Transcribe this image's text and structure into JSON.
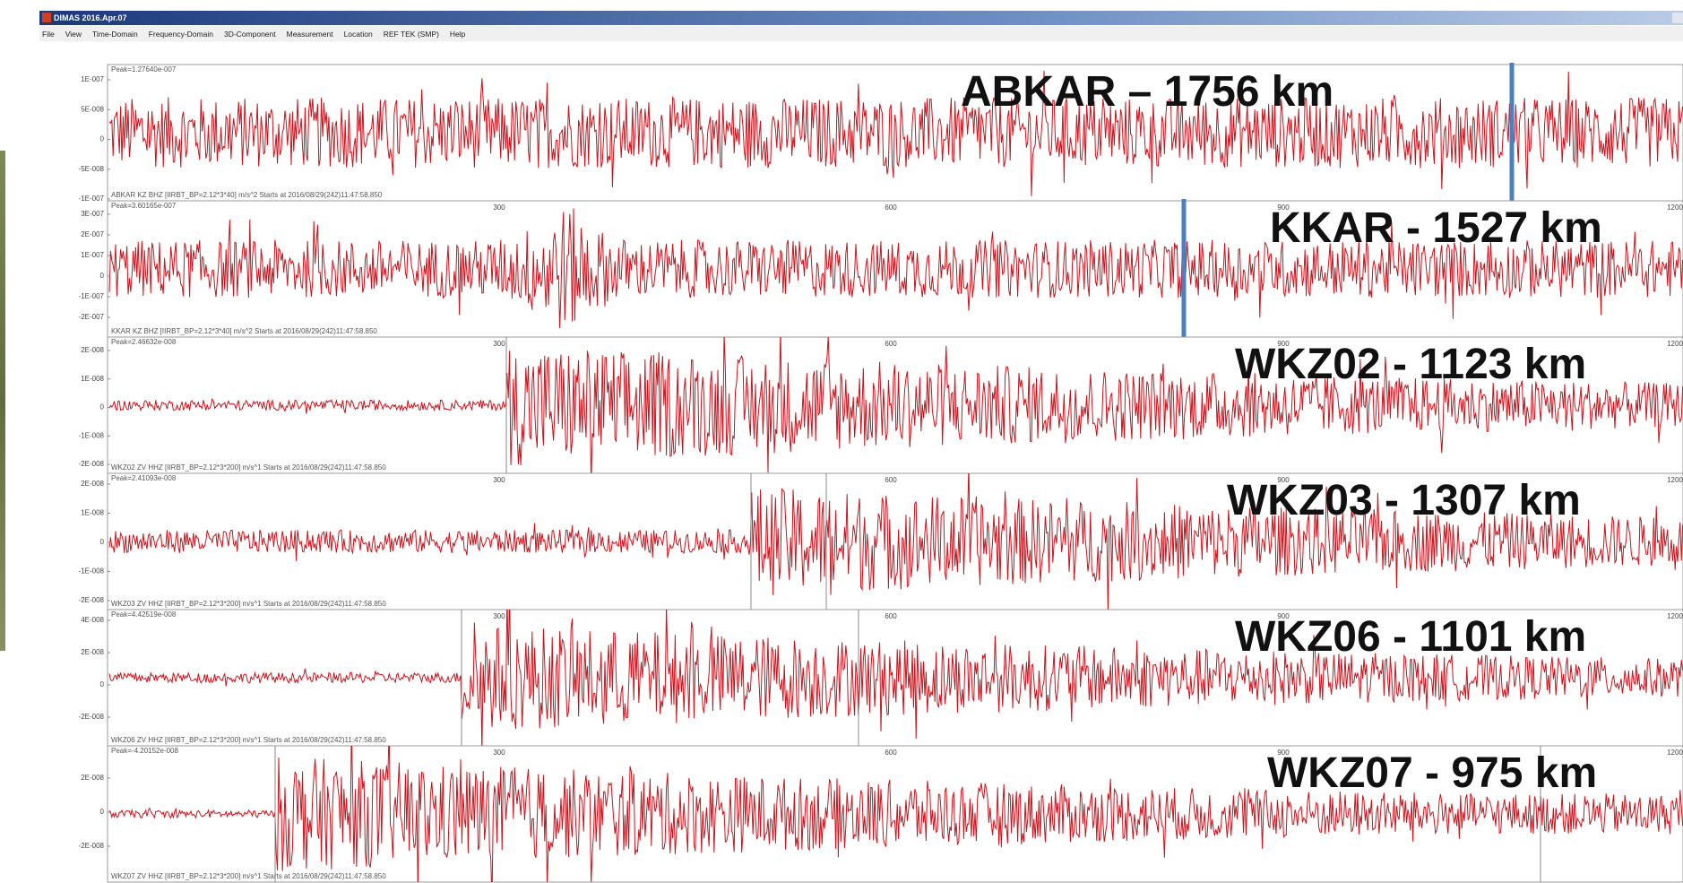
{
  "window": {
    "title": "DIMAS 2016.Apr.07",
    "menu": [
      "File",
      "View",
      "Time-Domain",
      "Frequency-Domain",
      "3D-Component",
      "Measurement",
      "Location",
      "REF TEK (SMP)",
      "Help"
    ]
  },
  "panels": [
    {
      "peak": "Peak=1.27640e-007",
      "yticks": [
        "1E-007",
        "5E-008",
        "0",
        "-5E-008",
        "-1E-007"
      ],
      "info": "ABKAR KZ BHZ [IIRBT_BP=2.12*3*40] m/s^2 Starts at 2016/08/29(242)11:47:58.850",
      "station": "ABKAR – 1756 km"
    },
    {
      "peak": "Peak=3.60165e-007",
      "yticks": [
        "3E-007",
        "2E-007",
        "1E-007",
        "0",
        "-1E-007",
        "-2E-007"
      ],
      "xticks": [
        "300",
        "600",
        "900",
        "1200"
      ],
      "info": "KKAR KZ BHZ [IIRBT_BP=2.12*3*40] m/s^2 Starts at 2016/08/29(242)11:47:58.850",
      "station": "KKAR - 1527 km"
    },
    {
      "peak": "Peak=2.46632e-008",
      "yticks": [
        "2E-008",
        "1E-008",
        "0",
        "-1E-008",
        "-2E-008"
      ],
      "xticks": [
        "300",
        "600",
        "900",
        "1200"
      ],
      "info": "WKZ02 ZV HHZ [IIRBT_BP=2.12*3*200] m/s^1 Starts at 2016/08/29(242)11:47:58.850",
      "station": "WKZ02 - 1123 km"
    },
    {
      "peak": "Peak=2.41093e-008",
      "yticks": [
        "2E-008",
        "1E-008",
        "0",
        "-1E-008",
        "-2E-008"
      ],
      "xticks": [
        "300",
        "600",
        "900",
        "1200"
      ],
      "info": "WKZ03 ZV HHZ [IIRBT_BP=2.12*3*200] m/s^1 Starts at 2016/08/29(242)11:47:58.850",
      "station": "WKZ03 - 1307 km"
    },
    {
      "peak": "Peak=4.42519e-008",
      "yticks": [
        "4E-008",
        "2E-008",
        "0",
        "-2E-008"
      ],
      "xticks": [
        "300",
        "600",
        "900",
        "1200"
      ],
      "info": "WKZ06 ZV HHZ [IIRBT_BP=2.12*3*200] m/s^1 Starts at 2016/08/29(242)11:47:58.850",
      "station": "WKZ06 - 1101 km"
    },
    {
      "peak": "Peak=-4.20152e-008",
      "yticks": [
        "2E-008",
        "0",
        "-2E-008"
      ],
      "xticks": [
        "300",
        "600",
        "900",
        "1200"
      ],
      "info": "WKZ07 ZV HHZ [IIRBT_BP=2.12*3*200] m/s^1 Starts at 2016/08/29(242)11:47:58.850",
      "station": "WKZ07 - 975 km"
    }
  ]
}
